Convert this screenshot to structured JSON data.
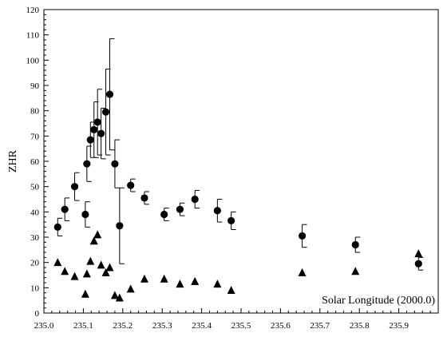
{
  "chart_data": {
    "type": "scatter",
    "title": "",
    "xlabel": "",
    "ylabel": "ZHR",
    "annotation": "Solar Longitude (2000.0)",
    "xlim": [
      235.0,
      236.0
    ],
    "ylim": [
      0,
      120
    ],
    "xticks": [
      235.0,
      235.1,
      235.2,
      235.3,
      235.4,
      235.5,
      235.6,
      235.7,
      235.8,
      235.9
    ],
    "yticks": [
      0,
      10,
      20,
      30,
      40,
      50,
      60,
      70,
      80,
      90,
      100,
      110,
      120
    ],
    "grid": false,
    "legend": "none",
    "series": [
      {
        "marker": "circle",
        "points": [
          {
            "x": 235.035,
            "y": 34,
            "err": 3.5
          },
          {
            "x": 235.053,
            "y": 41,
            "err": 4.5
          },
          {
            "x": 235.078,
            "y": 50,
            "err": 5.5
          },
          {
            "x": 235.105,
            "y": 39,
            "err": 5
          },
          {
            "x": 235.109,
            "y": 59,
            "err": 7
          },
          {
            "x": 235.118,
            "y": 68.5,
            "err": 7
          },
          {
            "x": 235.127,
            "y": 72.5,
            "err": 11
          },
          {
            "x": 235.136,
            "y": 75.5,
            "err": 13
          },
          {
            "x": 235.145,
            "y": 71,
            "err": 10
          },
          {
            "x": 235.157,
            "y": 79.5,
            "err": 17
          },
          {
            "x": 235.167,
            "y": 86.5,
            "err": 22
          },
          {
            "x": 235.18,
            "y": 59,
            "err": 9.5
          },
          {
            "x": 235.192,
            "y": 34.5,
            "err": 15
          },
          {
            "x": 235.22,
            "y": 50.5,
            "err": 2.5
          },
          {
            "x": 235.255,
            "y": 45.5,
            "err": 2.5
          },
          {
            "x": 235.305,
            "y": 39,
            "err": 2.5
          },
          {
            "x": 235.345,
            "y": 41,
            "err": 2.5
          },
          {
            "x": 235.383,
            "y": 45,
            "err": 3.5
          },
          {
            "x": 235.44,
            "y": 40.5,
            "err": 4.5
          },
          {
            "x": 235.475,
            "y": 36.5,
            "err": 3.5
          },
          {
            "x": 235.655,
            "y": 30.5,
            "err": 4.5
          },
          {
            "x": 235.79,
            "y": 27,
            "err": 3
          },
          {
            "x": 235.95,
            "y": 19.5,
            "err": 2.5
          }
        ]
      },
      {
        "marker": "triangle",
        "points": [
          {
            "x": 235.035,
            "y": 20
          },
          {
            "x": 235.053,
            "y": 16.5
          },
          {
            "x": 235.078,
            "y": 14.5
          },
          {
            "x": 235.105,
            "y": 7.5
          },
          {
            "x": 235.109,
            "y": 15.5
          },
          {
            "x": 235.118,
            "y": 20.5
          },
          {
            "x": 235.127,
            "y": 28.5
          },
          {
            "x": 235.136,
            "y": 31
          },
          {
            "x": 235.145,
            "y": 19
          },
          {
            "x": 235.157,
            "y": 16
          },
          {
            "x": 235.167,
            "y": 18
          },
          {
            "x": 235.18,
            "y": 7
          },
          {
            "x": 235.192,
            "y": 6
          },
          {
            "x": 235.22,
            "y": 9.5
          },
          {
            "x": 235.255,
            "y": 13.5
          },
          {
            "x": 235.305,
            "y": 13.5
          },
          {
            "x": 235.345,
            "y": 11.5
          },
          {
            "x": 235.383,
            "y": 12.5
          },
          {
            "x": 235.44,
            "y": 11.5
          },
          {
            "x": 235.475,
            "y": 9
          },
          {
            "x": 235.655,
            "y": 16
          },
          {
            "x": 235.79,
            "y": 16.5
          },
          {
            "x": 235.95,
            "y": 23.5
          }
        ]
      }
    ]
  }
}
